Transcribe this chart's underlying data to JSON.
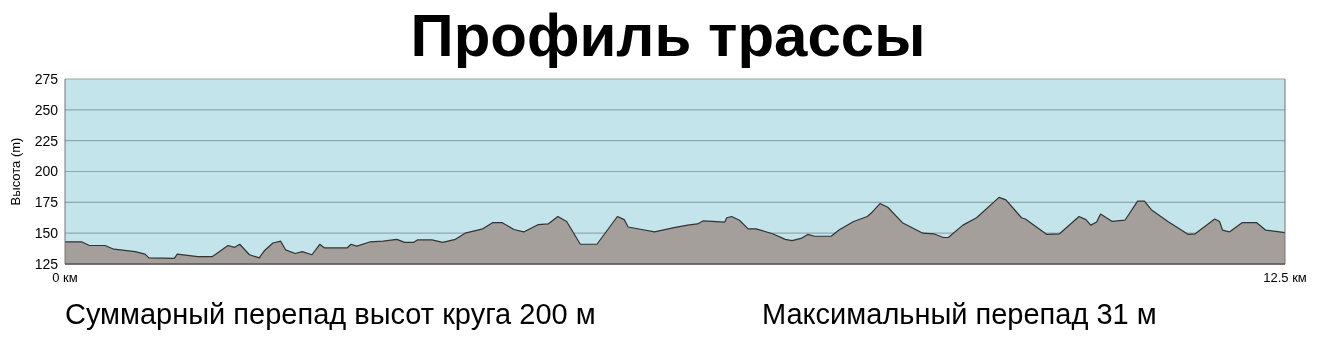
{
  "chart_data": {
    "type": "area",
    "title": "Профиль трассы",
    "ylabel": "Высота (m)",
    "annotations": [
      "Суммарный перепад высот круга 200 м",
      "Максимальный перепад 31 м"
    ],
    "x": [
      0,
      0.17,
      0.25,
      0.41,
      0.5,
      0.72,
      0.82,
      0.86,
      1.12,
      1.15,
      1.36,
      1.51,
      1.67,
      1.74,
      1.79,
      1.89,
      1.99,
      2.04,
      2.13,
      2.21,
      2.26,
      2.36,
      2.43,
      2.53,
      2.61,
      2.66,
      2.89,
      2.93,
      2.99,
      3.13,
      3.26,
      3.4,
      3.48,
      3.57,
      3.61,
      3.76,
      3.87,
      4.0,
      4.1,
      4.28,
      4.38,
      4.48,
      4.6,
      4.7,
      4.85,
      4.95,
      5.05,
      5.14,
      5.28,
      5.45,
      5.66,
      5.73,
      5.77,
      5.91,
      6.04,
      6.24,
      6.38,
      6.48,
      6.54,
      6.63,
      6.76,
      6.78,
      6.83,
      6.91,
      7.0,
      7.08,
      7.25,
      7.38,
      7.45,
      7.55,
      7.61,
      7.68,
      7.85,
      7.93,
      8.08,
      8.22,
      8.27,
      8.35,
      8.43,
      8.58,
      8.79,
      8.9,
      9.0,
      9.05,
      9.2,
      9.34,
      9.57,
      9.64,
      9.8,
      9.84,
      10.06,
      10.19,
      10.39,
      10.46,
      10.51,
      10.57,
      10.61,
      10.73,
      10.86,
      10.99,
      11.06,
      11.13,
      11.3,
      11.51,
      11.58,
      11.78,
      11.83,
      11.86,
      11.93,
      12.06,
      12.21,
      12.3,
      12.5
    ],
    "series": [
      {
        "color": "#a59f9c",
        "values": [
          143,
          143,
          140,
          140,
          137,
          135,
          133,
          130,
          129.5,
          133,
          131,
          131,
          140,
          138.5,
          141,
          132.5,
          130,
          135.5,
          142,
          143.5,
          136.5,
          133.5,
          135,
          132.5,
          141,
          138,
          138,
          141,
          139.5,
          143,
          143.5,
          145,
          142.5,
          142.5,
          144.5,
          144.5,
          142.5,
          145,
          150,
          153.5,
          158.5,
          158.5,
          153,
          151,
          157,
          157.5,
          163.5,
          159.5,
          141,
          141,
          163.5,
          161,
          155,
          153,
          151,
          154.5,
          156.5,
          157.5,
          160,
          159.5,
          159,
          162.5,
          163.5,
          160.5,
          153.5,
          153.5,
          149.5,
          145,
          144,
          146,
          149,
          147.5,
          147.5,
          152.5,
          159.5,
          163.5,
          167,
          174,
          171,
          158.5,
          150,
          149.5,
          146.5,
          146.5,
          156.5,
          162.5,
          179,
          177,
          162.5,
          161.5,
          149,
          149.5,
          163.5,
          161,
          156.5,
          159,
          165.5,
          159.5,
          160.5,
          176,
          176,
          169,
          159.5,
          149,
          149.5,
          161.5,
          159.5,
          152.5,
          151,
          158.5,
          158.5,
          152.5,
          150.5
        ]
      }
    ],
    "xlim": [
      0,
      12.5
    ],
    "xticks": [
      {
        "value": 0,
        "label": "0 км"
      },
      {
        "value": 12.5,
        "label": "12.5 км"
      }
    ],
    "ylim": [
      125,
      275
    ],
    "yticks": [
      125,
      150,
      175,
      200,
      225,
      250,
      275
    ],
    "grid": "y"
  }
}
